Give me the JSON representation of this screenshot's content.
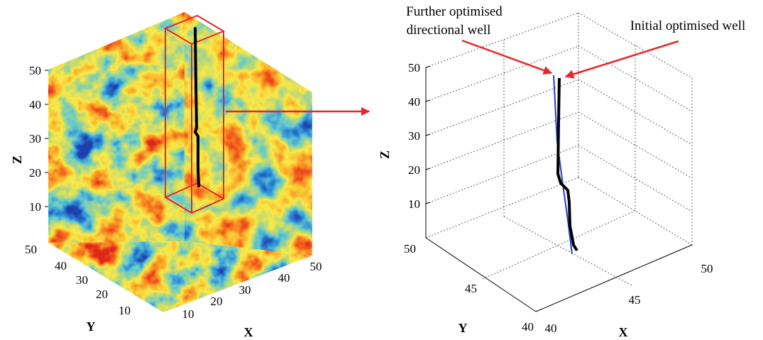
{
  "left_panel": {
    "z_ticks": [
      "50",
      "40",
      "30",
      "20",
      "10"
    ],
    "y_ticks": [
      "50",
      "40",
      "30",
      "20",
      "10"
    ],
    "x_ticks": [
      "10",
      "20",
      "30",
      "40",
      "50"
    ],
    "z_label": "Z",
    "y_label": "Y",
    "x_label": "X"
  },
  "right_panel": {
    "z_ticks": [
      "50",
      "40",
      "30",
      "20",
      "10"
    ],
    "y_ticks": [
      "50",
      "45",
      "40"
    ],
    "x_ticks": [
      "40",
      "45",
      "50"
    ],
    "z_label": "Z",
    "y_label": "Y",
    "x_label": "X",
    "annotation_further_line1": "Further optimised",
    "annotation_further_line2": "directional well",
    "annotation_initial": "Initial optimised well"
  },
  "colors": {
    "well_initial": "#000000",
    "well_directional": "#1f3fd0",
    "highlight_box": "#e8262a",
    "arrow": "#e8262a",
    "field_low": "#1e3fae",
    "field_mid_low": "#3eb9d9",
    "field_mid": "#7ed27a",
    "field_mid_high": "#f5e84a",
    "field_high": "#f5a02c",
    "field_peak": "#e0261e"
  }
}
